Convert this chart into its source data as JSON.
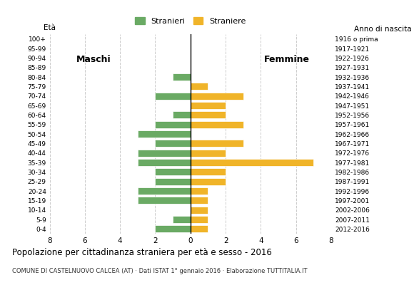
{
  "age_groups": [
    "0-4",
    "5-9",
    "10-14",
    "15-19",
    "20-24",
    "25-29",
    "30-34",
    "35-39",
    "40-44",
    "45-49",
    "50-54",
    "55-59",
    "60-64",
    "65-69",
    "70-74",
    "75-79",
    "80-84",
    "85-89",
    "90-94",
    "95-99",
    "100+"
  ],
  "birth_years": [
    "2012-2016",
    "2007-2011",
    "2002-2006",
    "1997-2001",
    "1992-1996",
    "1987-1991",
    "1982-1986",
    "1977-1981",
    "1972-1976",
    "1967-1971",
    "1962-1966",
    "1957-1961",
    "1952-1956",
    "1947-1951",
    "1942-1946",
    "1937-1941",
    "1932-1936",
    "1927-1931",
    "1922-1926",
    "1917-1921",
    "1916 o prima"
  ],
  "males": [
    2,
    1,
    0,
    3,
    3,
    2,
    2,
    3,
    3,
    2,
    3,
    2,
    1,
    0,
    2,
    0,
    1,
    0,
    0,
    0,
    0
  ],
  "females": [
    1,
    1,
    1,
    1,
    1,
    2,
    2,
    7,
    2,
    3,
    0,
    3,
    2,
    2,
    3,
    1,
    0,
    0,
    0,
    0,
    0
  ],
  "male_color": "#6aaa64",
  "female_color": "#f0b429",
  "background_color": "#ffffff",
  "grid_color": "#cccccc",
  "title": "Popolazione per cittadinanza straniera per età e sesso - 2016",
  "subtitle": "COMUNE DI CASTELNUOVO CALCEA (AT) · Dati ISTAT 1° gennaio 2016 · Elaborazione TUTTITALIA.IT",
  "legend_male": "Stranieri",
  "legend_female": "Straniere",
  "xlabel_eta": "Età",
  "xlabel_anno": "Anno di nascita",
  "label_maschi": "Maschi",
  "label_femmine": "Femmine",
  "xlim": 8
}
